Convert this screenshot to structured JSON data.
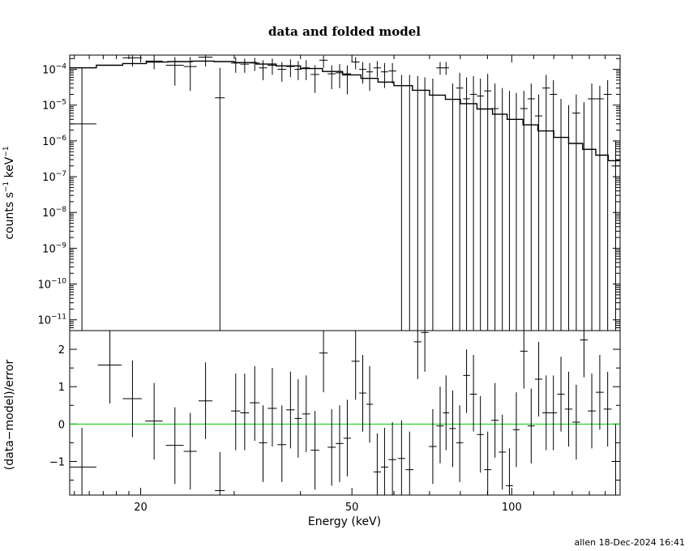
{
  "chart_data": [
    {
      "type": "scatter",
      "title": "data and folded model",
      "xlabel": "",
      "ylabel": "counts s^-1 keV^-1",
      "ylabel_parts": [
        "counts s",
        "−1",
        " keV",
        "−1"
      ],
      "xscale": "log",
      "yscale": "log",
      "xlim": [
        14.7,
        160
      ],
      "ylim": [
        5e-12,
        0.00025
      ],
      "yticks": [
        {
          "value": 1e-11,
          "base": "10",
          "exp": "−11"
        },
        {
          "value": 1e-10,
          "base": "10",
          "exp": "−10"
        },
        {
          "value": 1e-09,
          "base": "10",
          "exp": "−9"
        },
        {
          "value": 1e-08,
          "base": "10",
          "exp": "−8"
        },
        {
          "value": 1e-07,
          "base": "10",
          "exp": "−7"
        },
        {
          "value": 1e-06,
          "base": "10",
          "exp": "−6"
        },
        {
          "value": 1e-05,
          "base": "10",
          "exp": "−5"
        },
        {
          "value": 0.0001,
          "base": "10",
          "exp": "−4"
        }
      ],
      "data": [
        {
          "x": 15.5,
          "xerr": 1.0,
          "y": 3e-06,
          "ylo": 5e-12,
          "yhi": 0.00011
        },
        {
          "x": 17.5,
          "xerr": 0.9,
          "y": 0.00032,
          "ylo": 0.00025,
          "yhi": 0.00025
        },
        {
          "x": 19.3,
          "xerr": 0.8,
          "y": 0.00021,
          "ylo": 0.00012,
          "yhi": 0.00025
        },
        {
          "x": 21.2,
          "xerr": 0.8,
          "y": 0.00017,
          "ylo": 0.0001,
          "yhi": 0.00025
        },
        {
          "x": 23.2,
          "xerr": 0.9,
          "y": 0.00013,
          "ylo": 3.5e-05,
          "yhi": 0.00022
        },
        {
          "x": 24.8,
          "xerr": 0.7,
          "y": 0.00012,
          "ylo": 2.5e-05,
          "yhi": 0.00022
        },
        {
          "x": 26.5,
          "xerr": 0.8,
          "y": 0.00022,
          "ylo": 0.00012,
          "yhi": 0.00025
        },
        {
          "x": 28.2,
          "xerr": 0.6,
          "y": 1.6e-05,
          "ylo": 5e-12,
          "yhi": 0.00011
        },
        {
          "x": 30.2,
          "xerr": 0.6,
          "y": 0.00015,
          "ylo": 8e-05,
          "yhi": 0.00022
        },
        {
          "x": 31.4,
          "xerr": 0.6,
          "y": 0.00014,
          "ylo": 8e-05,
          "yhi": 0.0002
        },
        {
          "x": 32.8,
          "xerr": 0.7,
          "y": 0.00015,
          "ylo": 9e-05,
          "yhi": 0.00021
        },
        {
          "x": 34.0,
          "xerr": 0.6,
          "y": 0.00011,
          "ylo": 5e-05,
          "yhi": 0.00018
        },
        {
          "x": 35.4,
          "xerr": 0.7,
          "y": 0.00013,
          "ylo": 7e-05,
          "yhi": 0.0002
        },
        {
          "x": 36.9,
          "xerr": 0.7,
          "y": 0.0001,
          "ylo": 4.5e-05,
          "yhi": 0.00016
        },
        {
          "x": 38.3,
          "xerr": 0.7,
          "y": 0.00012,
          "ylo": 6e-05,
          "yhi": 0.00019
        },
        {
          "x": 39.6,
          "xerr": 0.6,
          "y": 0.0001,
          "ylo": 5e-05,
          "yhi": 0.00017
        },
        {
          "x": 41.0,
          "xerr": 0.7,
          "y": 0.00011,
          "ylo": 5e-05,
          "yhi": 0.00018
        },
        {
          "x": 42.6,
          "xerr": 0.8,
          "y": 7.2e-05,
          "ylo": 2.2e-05,
          "yhi": 0.00013
        },
        {
          "x": 44.2,
          "xerr": 0.8,
          "y": 0.00018,
          "ylo": 0.00011,
          "yhi": 0.00024
        },
        {
          "x": 45.8,
          "xerr": 0.8,
          "y": 7.5e-05,
          "ylo": 2.8e-05,
          "yhi": 0.00013
        },
        {
          "x": 47.4,
          "xerr": 0.8,
          "y": 8e-05,
          "ylo": 3e-05,
          "yhi": 0.00014
        },
        {
          "x": 49.0,
          "xerr": 0.8,
          "y": 7.5e-05,
          "ylo": 2e-05,
          "yhi": 0.00013
        },
        {
          "x": 50.8,
          "xerr": 0.9,
          "y": 0.00016,
          "ylo": 0.0001,
          "yhi": 0.00022
        },
        {
          "x": 52.4,
          "xerr": 0.8,
          "y": 0.0001,
          "ylo": 4e-05,
          "yhi": 0.00016
        },
        {
          "x": 54.0,
          "xerr": 0.8,
          "y": 8.5e-05,
          "ylo": 2.5e-05,
          "yhi": 0.00015
        },
        {
          "x": 55.8,
          "xerr": 0.9,
          "y": 0.00011,
          "ylo": 6e-05,
          "yhi": 0.00017
        },
        {
          "x": 57.6,
          "xerr": 0.9,
          "y": 8.5e-05,
          "ylo": 3e-05,
          "yhi": 0.00015
        },
        {
          "x": 59.6,
          "xerr": 1.0,
          "y": 9e-05,
          "ylo": 4e-05,
          "yhi": 0.00015
        },
        {
          "x": 62.0,
          "xerr": 1.0,
          "y": 5e-12,
          "ylo": 5e-12,
          "yhi": 7e-05
        },
        {
          "x": 64.2,
          "xerr": 1.1,
          "y": 5e-12,
          "ylo": 5e-12,
          "yhi": 7e-05
        },
        {
          "x": 66.5,
          "xerr": 1.1,
          "y": 5e-12,
          "ylo": 5e-12,
          "yhi": 6.5e-05
        },
        {
          "x": 68.6,
          "xerr": 1.1,
          "y": 5e-12,
          "ylo": 5e-12,
          "yhi": 6e-05
        },
        {
          "x": 71.0,
          "xerr": 1.2,
          "y": 5e-12,
          "ylo": 5e-12,
          "yhi": 5.5e-05
        },
        {
          "x": 73.3,
          "xerr": 1.2,
          "y": 0.00011,
          "ylo": 7e-05,
          "yhi": 0.00016
        },
        {
          "x": 75.2,
          "xerr": 1.0,
          "y": 0.00011,
          "ylo": 7e-05,
          "yhi": 0.00016
        },
        {
          "x": 77.4,
          "xerr": 1.1,
          "y": 5e-12,
          "ylo": 5e-12,
          "yhi": 4e-05
        },
        {
          "x": 79.8,
          "xerr": 1.2,
          "y": 3e-05,
          "ylo": 5e-12,
          "yhi": 8e-05
        },
        {
          "x": 82.2,
          "xerr": 1.2,
          "y": 1.5e-05,
          "ylo": 5e-12,
          "yhi": 6e-05
        },
        {
          "x": 84.7,
          "xerr": 1.3,
          "y": 2e-05,
          "ylo": 5e-12,
          "yhi": 6.5e-05
        },
        {
          "x": 87.3,
          "xerr": 1.3,
          "y": 1.8e-05,
          "ylo": 5e-12,
          "yhi": 5.5e-05
        },
        {
          "x": 90.1,
          "xerr": 1.4,
          "y": 2.5e-05,
          "ylo": 5e-12,
          "yhi": 7.5e-05
        },
        {
          "x": 93.0,
          "xerr": 1.5,
          "y": 8e-06,
          "ylo": 5e-12,
          "yhi": 4e-05
        },
        {
          "x": 96.0,
          "xerr": 1.5,
          "y": 5e-12,
          "ylo": 5e-12,
          "yhi": 3e-05
        },
        {
          "x": 99.0,
          "xerr": 1.5,
          "y": 5e-12,
          "ylo": 5e-12,
          "yhi": 2.5e-05
        },
        {
          "x": 102.0,
          "xerr": 1.5,
          "y": 5e-12,
          "ylo": 5e-12,
          "yhi": 2.2e-05
        },
        {
          "x": 105.4,
          "xerr": 1.7,
          "y": 8e-06,
          "ylo": 5e-12,
          "yhi": 2.5e-05
        },
        {
          "x": 108.8,
          "xerr": 1.7,
          "y": 1.5e-05,
          "ylo": 5e-12,
          "yhi": 4e-05
        },
        {
          "x": 112.4,
          "xerr": 1.8,
          "y": 5e-06,
          "ylo": 5e-12,
          "yhi": 2e-05
        },
        {
          "x": 116.1,
          "xerr": 1.9,
          "y": 3e-05,
          "ylo": 5e-12,
          "yhi": 7e-05
        },
        {
          "x": 119.8,
          "xerr": 1.9,
          "y": 2e-05,
          "ylo": 5e-12,
          "yhi": 5e-05
        },
        {
          "x": 123.8,
          "xerr": 2.0,
          "y": 5e-12,
          "ylo": 5e-12,
          "yhi": 1.5e-05
        },
        {
          "x": 128.0,
          "xerr": 2.1,
          "y": 5e-12,
          "ylo": 5e-12,
          "yhi": 1e-05
        },
        {
          "x": 132.3,
          "xerr": 2.2,
          "y": 6e-06,
          "ylo": 5e-12,
          "yhi": 2e-05
        },
        {
          "x": 136.8,
          "xerr": 2.3,
          "y": 5e-12,
          "ylo": 5e-12,
          "yhi": 1.2e-05
        },
        {
          "x": 141.5,
          "xerr": 2.4,
          "y": 1.5e-05,
          "ylo": 5e-12,
          "yhi": 4e-05
        },
        {
          "x": 146.5,
          "xerr": 2.5,
          "y": 1.5e-05,
          "ylo": 5e-12,
          "yhi": 3.5e-05
        },
        {
          "x": 151.6,
          "xerr": 2.6,
          "y": 2e-05,
          "ylo": 5e-12,
          "yhi": 5e-05
        },
        {
          "x": 156.9,
          "xerr": 2.7,
          "y": 2e-07,
          "ylo": 5e-12,
          "yhi": 1e-06
        }
      ],
      "model": [
        [
          14.7,
          0.00011
        ],
        [
          16.5,
          0.00013
        ],
        [
          18.5,
          0.000145
        ],
        [
          20.5,
          0.00016
        ],
        [
          22.5,
          0.000165
        ],
        [
          25.0,
          0.00017
        ],
        [
          27.5,
          0.000165
        ],
        [
          30.0,
          0.000155
        ],
        [
          33.0,
          0.00014
        ],
        [
          36.0,
          0.000125
        ],
        [
          40.0,
          0.000105
        ],
        [
          44.0,
          8.7e-05
        ],
        [
          48.0,
          7e-05
        ],
        [
          52.0,
          5.6e-05
        ],
        [
          56.0,
          4.4e-05
        ],
        [
          60.0,
          3.5e-05
        ],
        [
          65.0,
          2.6e-05
        ],
        [
          70.0,
          1.9e-05
        ],
        [
          75.0,
          1.45e-05
        ],
        [
          80.0,
          1.1e-05
        ],
        [
          86.0,
          7.8e-06
        ],
        [
          92.0,
          5.6e-06
        ],
        [
          98.0,
          4e-06
        ],
        [
          105.0,
          2.8e-06
        ],
        [
          112.0,
          1.9e-06
        ],
        [
          120.0,
          1.25e-06
        ],
        [
          128.0,
          8.5e-07
        ],
        [
          136.0,
          5.8e-07
        ],
        [
          144.0,
          4e-07
        ],
        [
          152.0,
          2.8e-07
        ],
        [
          160.0,
          1.8e-07
        ]
      ],
      "grid": false
    },
    {
      "type": "scatter",
      "title": "",
      "xlabel": "Energy (keV)",
      "ylabel": "(data−model)/error",
      "xscale": "log",
      "xlim": [
        14.7,
        160
      ],
      "ylim": [
        -1.9,
        2.5
      ],
      "xticks": [
        {
          "value": 20,
          "label": "20"
        },
        {
          "value": 50,
          "label": "50"
        },
        {
          "value": 100,
          "label": "100"
        }
      ],
      "yticks": [
        {
          "value": 2,
          "label": "2"
        },
        {
          "value": 1,
          "label": "1"
        },
        {
          "value": 0,
          "label": "0"
        },
        {
          "value": -1,
          "label": "−1"
        }
      ],
      "reference_line": {
        "y": 0,
        "color": "#00cc00"
      },
      "data": [
        {
          "x": 15.5,
          "xerr": 1.0,
          "y": -1.15,
          "ylo": -1.9,
          "yhi": -0.1
        },
        {
          "x": 17.5,
          "xerr": 0.9,
          "y": 1.58,
          "ylo": 0.55,
          "yhi": 2.5
        },
        {
          "x": 19.3,
          "xerr": 0.8,
          "y": 0.68,
          "ylo": -0.35,
          "yhi": 1.7
        },
        {
          "x": 21.2,
          "xerr": 0.8,
          "y": 0.08,
          "ylo": -0.95,
          "yhi": 1.1
        },
        {
          "x": 23.2,
          "xerr": 0.9,
          "y": -0.57,
          "ylo": -1.6,
          "yhi": 0.45
        },
        {
          "x": 24.8,
          "xerr": 0.7,
          "y": -0.73,
          "ylo": -1.75,
          "yhi": 0.3
        },
        {
          "x": 26.5,
          "xerr": 0.8,
          "y": 0.62,
          "ylo": -0.4,
          "yhi": 1.65
        },
        {
          "x": 28.2,
          "xerr": 0.6,
          "y": -1.78,
          "ylo": -1.9,
          "yhi": -0.75
        },
        {
          "x": 30.2,
          "xerr": 0.6,
          "y": 0.35,
          "ylo": -0.7,
          "yhi": 1.35
        },
        {
          "x": 31.4,
          "xerr": 0.6,
          "y": 0.3,
          "ylo": -0.7,
          "yhi": 1.35
        },
        {
          "x": 32.8,
          "xerr": 0.7,
          "y": 0.57,
          "ylo": -0.45,
          "yhi": 1.55
        },
        {
          "x": 34.0,
          "xerr": 0.6,
          "y": -0.5,
          "ylo": -1.55,
          "yhi": 0.5
        },
        {
          "x": 35.4,
          "xerr": 0.7,
          "y": 0.42,
          "ylo": -0.6,
          "yhi": 1.5
        },
        {
          "x": 36.9,
          "xerr": 0.7,
          "y": -0.55,
          "ylo": -1.55,
          "yhi": 0.5
        },
        {
          "x": 38.3,
          "xerr": 0.7,
          "y": 0.38,
          "ylo": -0.65,
          "yhi": 1.4
        },
        {
          "x": 39.6,
          "xerr": 0.6,
          "y": 0.15,
          "ylo": -0.9,
          "yhi": 1.2
        },
        {
          "x": 41.0,
          "xerr": 0.7,
          "y": 0.27,
          "ylo": -0.75,
          "yhi": 1.3
        },
        {
          "x": 42.6,
          "xerr": 0.8,
          "y": -0.7,
          "ylo": -1.75,
          "yhi": 0.35
        },
        {
          "x": 44.2,
          "xerr": 0.8,
          "y": 1.9,
          "ylo": 0.85,
          "yhi": 2.5
        },
        {
          "x": 45.8,
          "xerr": 0.8,
          "y": -0.62,
          "ylo": -1.65,
          "yhi": 0.4
        },
        {
          "x": 47.4,
          "xerr": 0.8,
          "y": -0.52,
          "ylo": -1.55,
          "yhi": 0.5
        },
        {
          "x": 49.0,
          "xerr": 0.8,
          "y": -0.38,
          "ylo": -1.4,
          "yhi": 0.65
        },
        {
          "x": 50.8,
          "xerr": 0.9,
          "y": 1.68,
          "ylo": 0.65,
          "yhi": 2.5
        },
        {
          "x": 52.4,
          "xerr": 0.8,
          "y": 0.83,
          "ylo": -0.2,
          "yhi": 1.85
        },
        {
          "x": 54.0,
          "xerr": 0.8,
          "y": 0.53,
          "ylo": -0.5,
          "yhi": 1.55
        },
        {
          "x": 55.8,
          "xerr": 0.9,
          "y": -1.28,
          "ylo": -1.9,
          "yhi": -0.25
        },
        {
          "x": 57.6,
          "xerr": 0.9,
          "y": -1.15,
          "ylo": -1.9,
          "yhi": -0.1
        },
        {
          "x": 59.6,
          "xerr": 1.0,
          "y": -0.95,
          "ylo": -1.9,
          "yhi": 0.05
        },
        {
          "x": 62.0,
          "xerr": 1.0,
          "y": -0.92,
          "ylo": -1.9,
          "yhi": 0.1
        },
        {
          "x": 64.2,
          "xerr": 1.1,
          "y": -1.22,
          "ylo": -1.9,
          "yhi": -0.2
        },
        {
          "x": 66.5,
          "xerr": 1.1,
          "y": 2.2,
          "ylo": 1.2,
          "yhi": 2.5
        },
        {
          "x": 68.6,
          "xerr": 1.1,
          "y": 2.45,
          "ylo": 1.4,
          "yhi": 2.5
        },
        {
          "x": 71.0,
          "xerr": 1.2,
          "y": -0.6,
          "ylo": -1.6,
          "yhi": 0.4
        },
        {
          "x": 73.3,
          "xerr": 1.2,
          "y": -0.05,
          "ylo": -1.05,
          "yhi": 1.0
        },
        {
          "x": 75.2,
          "xerr": 1.0,
          "y": 0.3,
          "ylo": -0.7,
          "yhi": 1.3
        },
        {
          "x": 77.4,
          "xerr": 1.1,
          "y": -0.12,
          "ylo": -1.15,
          "yhi": 0.9
        },
        {
          "x": 79.8,
          "xerr": 1.2,
          "y": -0.5,
          "ylo": -1.55,
          "yhi": 0.5
        },
        {
          "x": 82.2,
          "xerr": 1.2,
          "y": 1.3,
          "ylo": 0.3,
          "yhi": 2.0
        },
        {
          "x": 84.7,
          "xerr": 1.3,
          "y": 0.8,
          "ylo": -0.2,
          "yhi": 1.85
        },
        {
          "x": 87.3,
          "xerr": 1.3,
          "y": -0.28,
          "ylo": -1.3,
          "yhi": 0.75
        },
        {
          "x": 90.1,
          "xerr": 1.4,
          "y": -1.22,
          "ylo": -1.9,
          "yhi": -0.2
        },
        {
          "x": 93.0,
          "xerr": 1.5,
          "y": 0.1,
          "ylo": -0.9,
          "yhi": 1.1
        },
        {
          "x": 96.0,
          "xerr": 1.5,
          "y": -0.75,
          "ylo": -1.75,
          "yhi": 0.25
        },
        {
          "x": 99.0,
          "xerr": 1.5,
          "y": -1.65,
          "ylo": -1.9,
          "yhi": -0.65
        },
        {
          "x": 102.0,
          "xerr": 1.5,
          "y": -0.15,
          "ylo": -1.15,
          "yhi": 0.85
        },
        {
          "x": 105.4,
          "xerr": 1.7,
          "y": 1.95,
          "ylo": 0.95,
          "yhi": 2.5
        },
        {
          "x": 108.8,
          "xerr": 1.7,
          "y": -0.05,
          "ylo": -1.05,
          "yhi": 0.95
        },
        {
          "x": 112.4,
          "xerr": 1.8,
          "y": 1.2,
          "ylo": 0.2,
          "yhi": 2.2
        },
        {
          "x": 116.1,
          "xerr": 1.9,
          "y": 0.3,
          "ylo": -0.7,
          "yhi": 1.3
        },
        {
          "x": 119.8,
          "xerr": 1.9,
          "y": 0.3,
          "ylo": -0.7,
          "yhi": 1.3
        },
        {
          "x": 123.8,
          "xerr": 2.0,
          "y": 0.8,
          "ylo": -0.2,
          "yhi": 1.8
        },
        {
          "x": 128.0,
          "xerr": 2.1,
          "y": 0.4,
          "ylo": -0.6,
          "yhi": 1.4
        },
        {
          "x": 132.3,
          "xerr": 2.2,
          "y": 0.05,
          "ylo": -0.95,
          "yhi": 1.05
        },
        {
          "x": 136.8,
          "xerr": 2.3,
          "y": 2.25,
          "ylo": 1.25,
          "yhi": 2.5
        },
        {
          "x": 141.5,
          "xerr": 2.4,
          "y": 0.35,
          "ylo": -0.65,
          "yhi": 1.35
        },
        {
          "x": 146.5,
          "xerr": 2.5,
          "y": 0.85,
          "ylo": -0.15,
          "yhi": 1.85
        },
        {
          "x": 151.6,
          "xerr": 2.6,
          "y": 0.4,
          "ylo": -0.6,
          "yhi": 1.4
        },
        {
          "x": 156.9,
          "xerr": 2.7,
          "y": -1.0,
          "ylo": -1.9,
          "yhi": 0.0
        }
      ],
      "grid": false
    }
  ],
  "footer": "allen 18-Dec-2024 16:41"
}
